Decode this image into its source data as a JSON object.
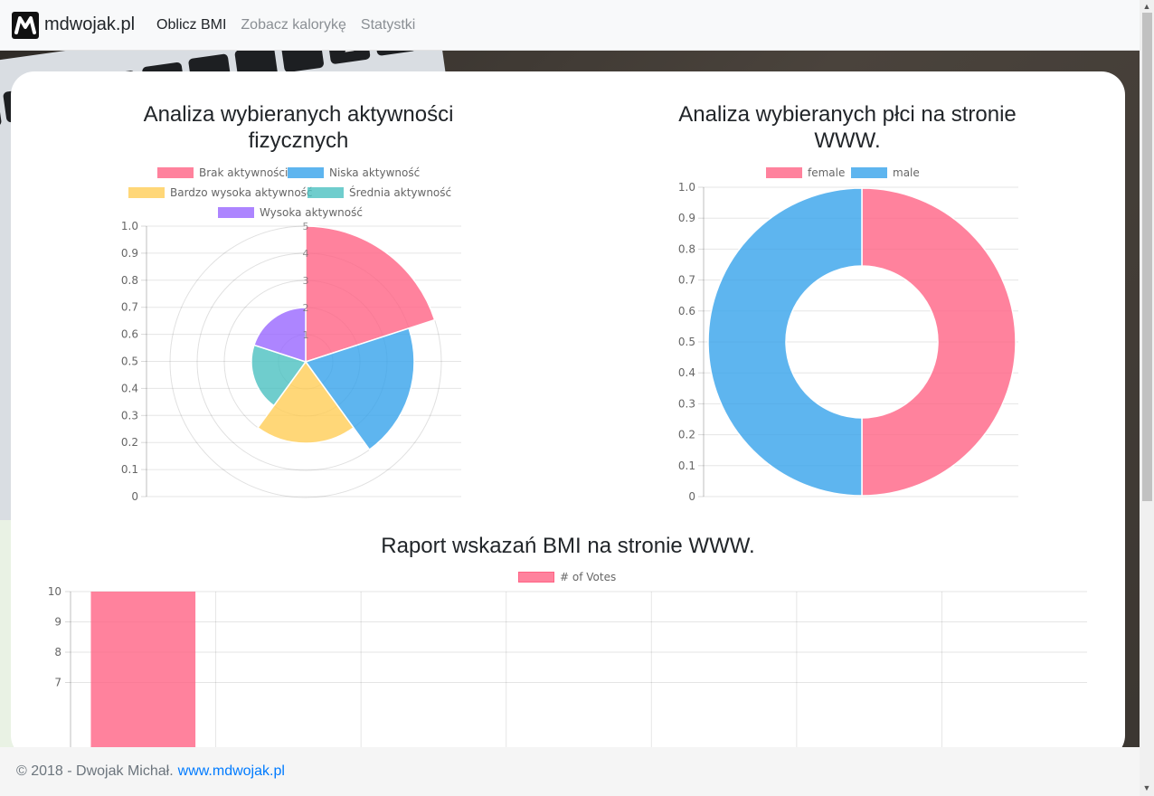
{
  "navbar": {
    "brand": "mdwojak.pl",
    "links": [
      {
        "label": "Oblicz BMI",
        "active": true
      },
      {
        "label": "Zobacz kalorykę",
        "active": false
      },
      {
        "label": "Statystki",
        "active": false
      }
    ]
  },
  "colors": {
    "pink": "#ff6384",
    "blue": "#36a2eb",
    "yellow": "#ffcd56",
    "teal": "#4bc0c0",
    "purple": "#9966ff",
    "link": "#007bff"
  },
  "chart_data": [
    {
      "type": "polarArea",
      "title": "Analiza wybieranych aktywności fizycznych",
      "categories": [
        "Brak aktywności",
        "Niska aktywność",
        "Bardzo wysoka aktywność",
        "Średnia aktywność",
        "Wysoka aktywność"
      ],
      "values": [
        5,
        4,
        3,
        2,
        2
      ],
      "colors": [
        "#ff6384",
        "#36a2eb",
        "#ffcd56",
        "#4bc0c0",
        "#9966ff"
      ],
      "r_ticks": [
        "1",
        "2",
        "3",
        "4",
        "5"
      ],
      "y_ticks": [
        "0",
        "0.1",
        "0.2",
        "0.3",
        "0.4",
        "0.5",
        "0.6",
        "0.7",
        "0.8",
        "0.9",
        "1.0"
      ],
      "ylim": [
        0,
        1
      ],
      "rlim": [
        0,
        5
      ],
      "legend": "top"
    },
    {
      "type": "doughnut",
      "title": "Analiza wybieranych płci na stronie WWW.",
      "categories": [
        "female",
        "male"
      ],
      "values": [
        1,
        1
      ],
      "colors": [
        "#ff6384",
        "#36a2eb"
      ],
      "y_ticks": [
        "0",
        "0.1",
        "0.2",
        "0.3",
        "0.4",
        "0.5",
        "0.6",
        "0.7",
        "0.8",
        "0.9",
        "1.0"
      ],
      "ylim": [
        0,
        1
      ],
      "legend": "top"
    },
    {
      "type": "bar",
      "title": "Raport wskazań BMI na stronie WWW.",
      "series": [
        {
          "name": "# of Votes",
          "values": [
            10,
            0,
            0,
            0,
            0,
            0,
            0
          ]
        }
      ],
      "y_ticks": [
        "7",
        "8",
        "9",
        "10"
      ],
      "ylim": [
        0,
        10
      ],
      "color": "#ff6384",
      "legend": "top"
    }
  ],
  "footer": {
    "text": "© 2018 - Dwojak Michał.",
    "link": "www.mdwojak.pl"
  }
}
